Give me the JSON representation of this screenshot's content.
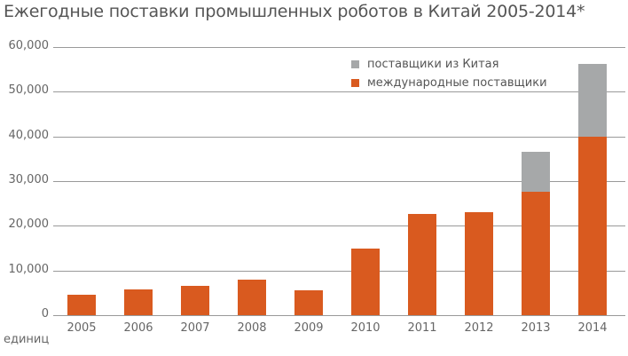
{
  "chart_data": {
    "type": "bar",
    "stacked": true,
    "title": "Ежегодные поставки промышленных роботов в Китай 2005-2014*",
    "xlabel": "",
    "ylabel": "единиц",
    "ylim": [
      0,
      60000
    ],
    "yticks": [
      "0",
      "10,000",
      "20,000",
      "30,000",
      "40,000",
      "50,000",
      "60,000"
    ],
    "categories": [
      "2005",
      "2006",
      "2007",
      "2008",
      "2009",
      "2010",
      "2011",
      "2012",
      "2013",
      "2014"
    ],
    "series": [
      {
        "name": "международные поставщики",
        "color": "#d95a1f",
        "values": [
          4500,
          5800,
          6600,
          7900,
          5600,
          15000,
          22600,
          23000,
          27600,
          40000
        ]
      },
      {
        "name": "поставщики из Китая",
        "color": "#a6a8a9",
        "values": [
          0,
          0,
          0,
          0,
          0,
          0,
          0,
          0,
          8900,
          16200
        ]
      }
    ],
    "grid": true,
    "legend_position": "top-right"
  },
  "legend": {
    "items": [
      {
        "label": "поставщики из Китая",
        "color": "#a6a8a9"
      },
      {
        "label": "международные поставщики",
        "color": "#d95a1f"
      }
    ]
  }
}
